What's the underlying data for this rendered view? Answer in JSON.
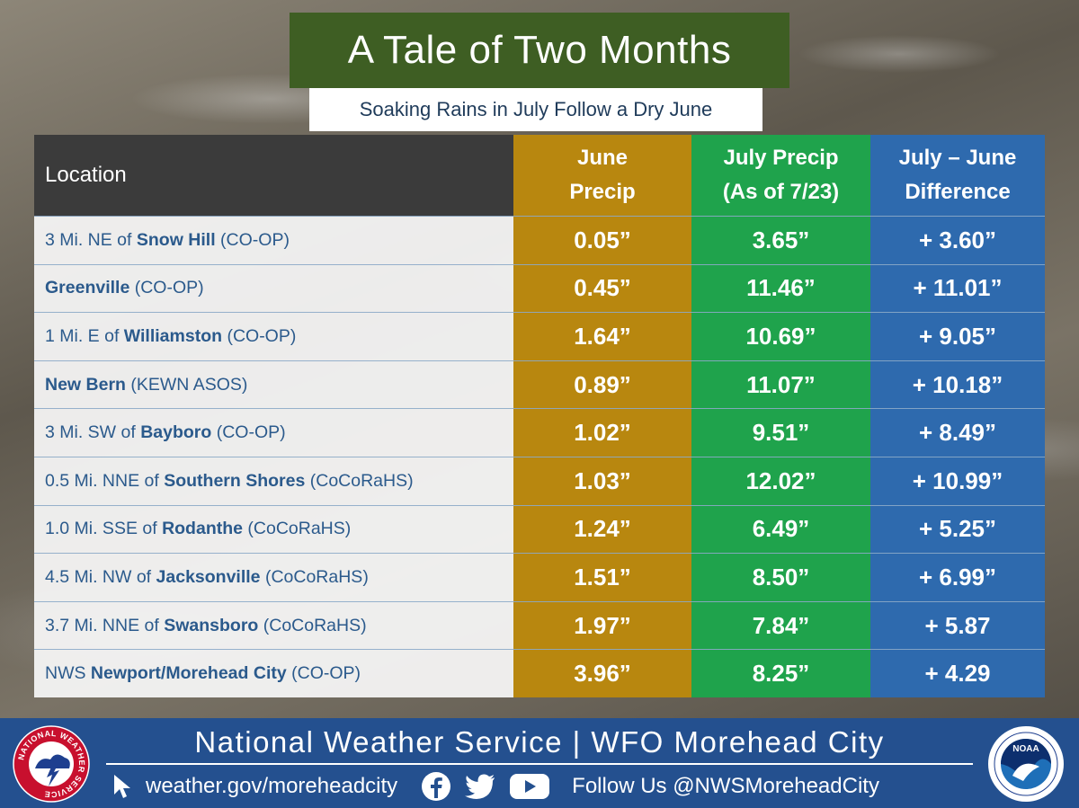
{
  "title": "A Tale of Two Months",
  "subtitle": "Soaking Rains in July Follow a Dry June",
  "table": {
    "headers": {
      "location": "Location",
      "june": [
        "June",
        "Precip"
      ],
      "july": [
        "July Precip",
        "(As of 7/23)"
      ],
      "diff": [
        "July – June",
        "Difference"
      ]
    },
    "rows": [
      {
        "prefix": "3 Mi. NE of ",
        "city": "Snow Hill",
        "suffix": " (CO-OP)",
        "june": "0.05”",
        "july": "3.65”",
        "diff": "+ 3.60”"
      },
      {
        "prefix": "",
        "city": "Greenville",
        "suffix": " (CO-OP)",
        "june": "0.45”",
        "july": "11.46”",
        "diff": "+ 11.01”"
      },
      {
        "prefix": "1 Mi. E of ",
        "city": "Williamston",
        "suffix": " (CO-OP)",
        "june": "1.64”",
        "july": "10.69”",
        "diff": "+ 9.05”"
      },
      {
        "prefix": "",
        "city": "New Bern",
        "suffix": " (KEWN ASOS)",
        "june": "0.89”",
        "july": "11.07”",
        "diff": "+ 10.18”"
      },
      {
        "prefix": "3 Mi. SW of ",
        "city": "Bayboro",
        "suffix": " (CO-OP)",
        "june": "1.02”",
        "july": "9.51”",
        "diff": "+ 8.49”"
      },
      {
        "prefix": "0.5 Mi. NNE of ",
        "city": "Southern Shores",
        "suffix": " (CoCoRaHS)",
        "june": "1.03”",
        "july": "12.02”",
        "diff": "+ 10.99”"
      },
      {
        "prefix": "1.0 Mi. SSE of ",
        "city": "Rodanthe",
        "suffix": " (CoCoRaHS)",
        "june": "1.24”",
        "july": "6.49”",
        "diff": "+ 5.25”"
      },
      {
        "prefix": "4.5 Mi. NW of ",
        "city": "Jacksonville",
        "suffix": " (CoCoRaHS)",
        "june": "1.51”",
        "july": "8.50”",
        "diff": "+ 6.99”"
      },
      {
        "prefix": "3.7 Mi. NNE of ",
        "city": "Swansboro",
        "suffix": " (CoCoRaHS)",
        "june": "1.97”",
        "july": "7.84”",
        "diff": "+ 5.87"
      },
      {
        "prefix": "NWS ",
        "city": "Newport/Morehead City",
        "suffix": " (CO-OP)",
        "june": "3.96”",
        "july": "8.25”",
        "diff": "+ 4.29"
      }
    ]
  },
  "footer": {
    "title": "National Weather Service | WFO Morehead City",
    "website": "weather.gov/moreheadcity",
    "follow": "Follow Us @NWSMoreheadCity",
    "nws_logo_text": "NATIONAL WEATHER SERVICE",
    "noaa_logo_text": "NOAA",
    "icons": [
      "cursor-arrow-icon",
      "facebook-icon",
      "twitter-icon",
      "youtube-icon"
    ]
  },
  "colors": {
    "title_bg": "#3e5e23",
    "june": "#b8870f",
    "july": "#1fa34c",
    "diff": "#2e6aae",
    "footer": "#24508f"
  }
}
